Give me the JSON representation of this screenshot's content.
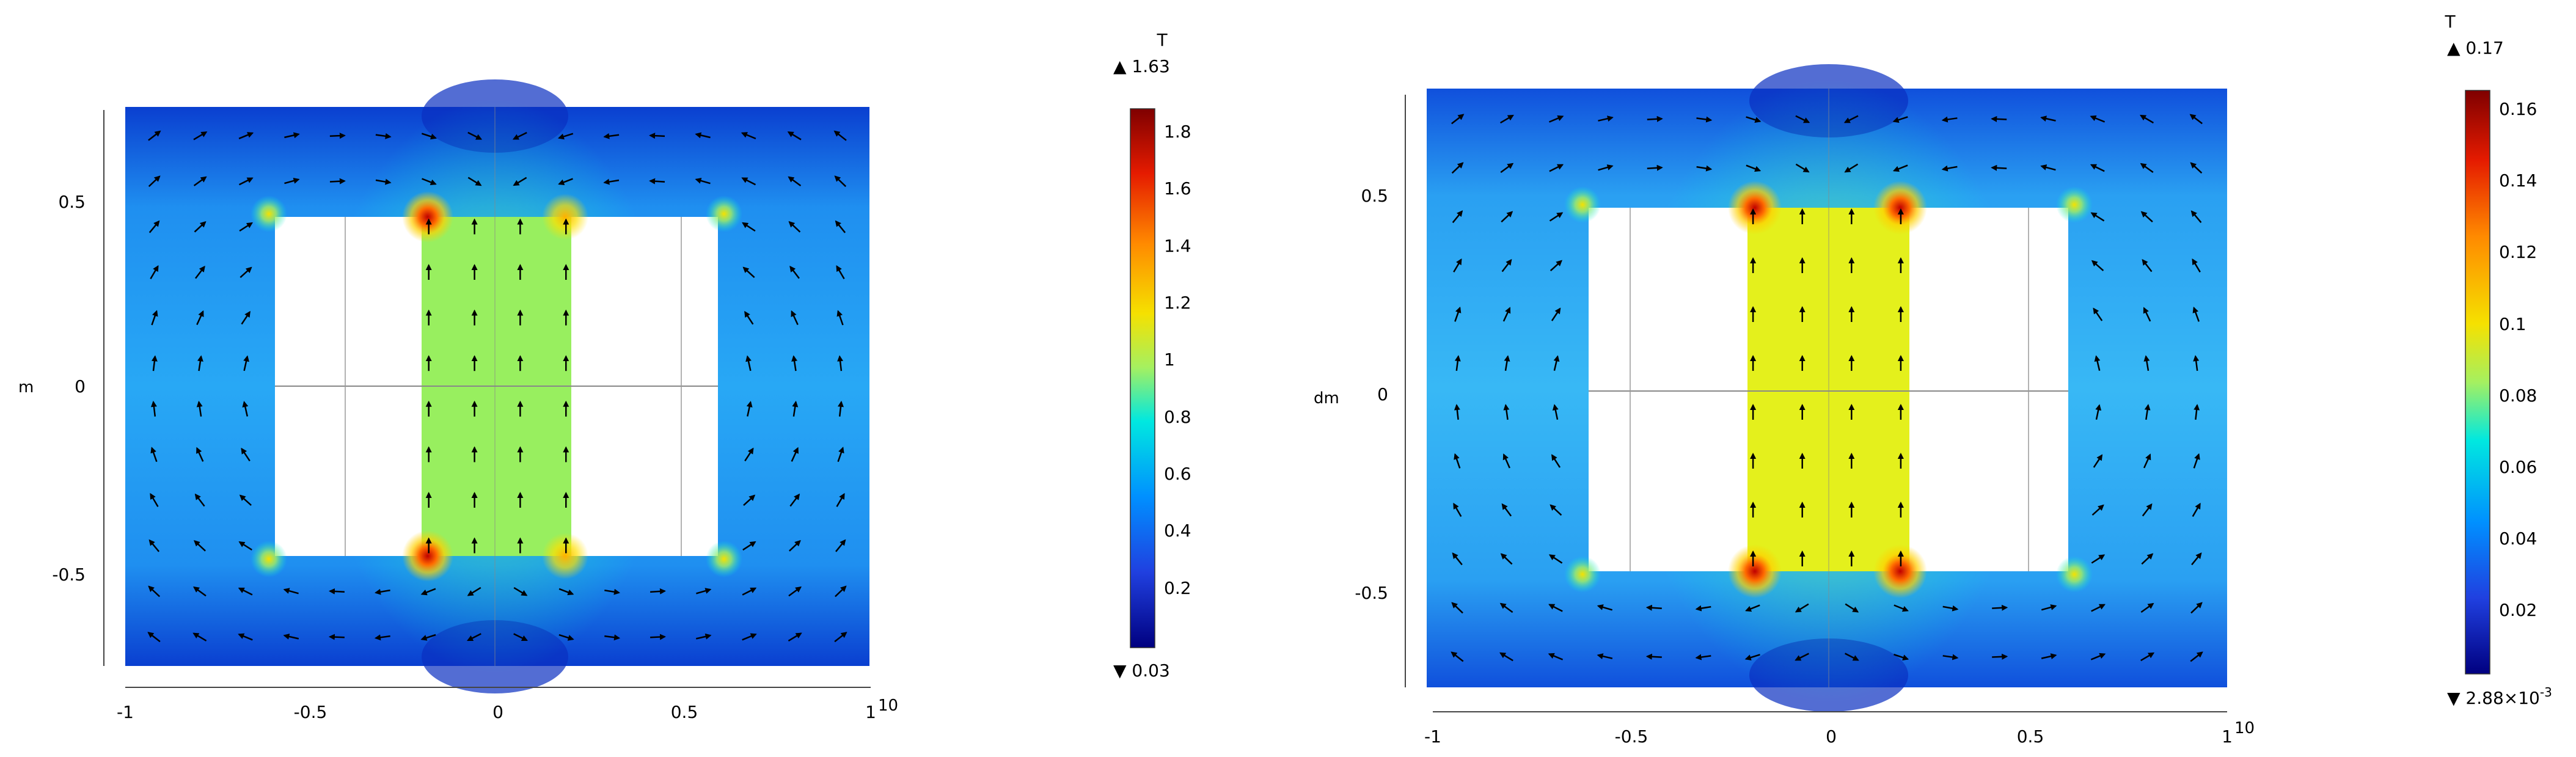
{
  "plots": [
    {
      "name": "left",
      "y_unit": "m",
      "x_ticks": [
        "-1",
        "-0.5",
        "0",
        "0.5",
        "1"
      ],
      "x_exponent": "10",
      "y_ticks": [
        "0.5",
        "0",
        "-0.5"
      ],
      "colorbar": {
        "unit": "T",
        "max_label": "▲ 1.63",
        "min_label": "▼ 0.03",
        "ticks": [
          "1.8",
          "1.6",
          "1.4",
          "1.2",
          "1",
          "0.8",
          "0.6",
          "0.4",
          "0.2"
        ]
      }
    },
    {
      "name": "right",
      "y_unit": "dm",
      "x_ticks": [
        "-1",
        "-0.5",
        "0",
        "0.5",
        "1"
      ],
      "x_exponent": "10",
      "y_ticks": [
        "0.5",
        "0",
        "-0.5"
      ],
      "colorbar": {
        "unit": "T",
        "max_label": "▲ 0.17",
        "min_label": "▼ 2.88×10",
        "min_exponent": "-3",
        "ticks": [
          "0.16",
          "0.14",
          "0.12",
          "0.1",
          "0.08",
          "0.06",
          "0.04",
          "0.02"
        ]
      }
    }
  ],
  "colors": {
    "colormap": [
      "#7f0000",
      "#e51b00",
      "#ff8a00",
      "#f5e100",
      "#a5f060",
      "#00e8e0",
      "#0090ff",
      "#2040e0",
      "#000080"
    ],
    "core_left": "#98ef5f",
    "core_right": "#e4f01c",
    "frame_left": "#1f9bf0",
    "frame_right": "#33a8f2"
  }
}
